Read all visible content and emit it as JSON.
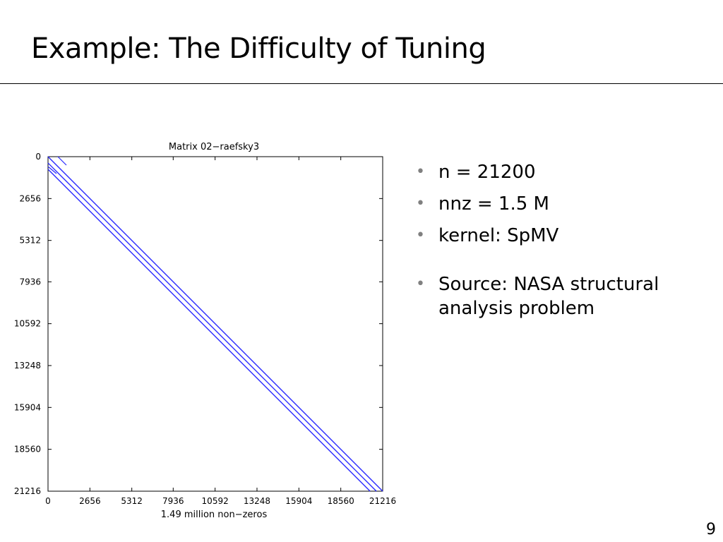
{
  "slide": {
    "title": "Example: The Difficulty of Tuning",
    "page_number": "9"
  },
  "bullets": [
    {
      "text": "n = 21200",
      "symbol": "•"
    },
    {
      "text": "nnz = 1.5 M",
      "symbol": "•"
    },
    {
      "text": "kernel: SpMV",
      "symbol": "•"
    },
    {
      "text": "Source: NASA structural analysis problem",
      "symbol": "•"
    }
  ],
  "figure": {
    "title": "Matrix 02−raefsky3",
    "xlabel": "1.49 million non−zeros",
    "ticks": [
      "0",
      "2656",
      "5312",
      "7936",
      "10592",
      "13248",
      "15904",
      "18560",
      "21216"
    ],
    "tick_values": [
      0,
      2656,
      5312,
      7936,
      10592,
      13248,
      15904,
      18560,
      21216
    ],
    "range": [
      0,
      21216
    ],
    "line_color": "#2a2aff",
    "bands": [
      {
        "name": "upper-band",
        "start": [
          0,
          0
        ],
        "end": [
          21216,
          21216
        ]
      },
      {
        "name": "main-diagonal",
        "start": [
          0,
          400
        ],
        "end": [
          21216,
          21616
        ]
      },
      {
        "name": "lower-band",
        "start": [
          0,
          800
        ],
        "end": [
          21216,
          22016
        ]
      }
    ]
  }
}
